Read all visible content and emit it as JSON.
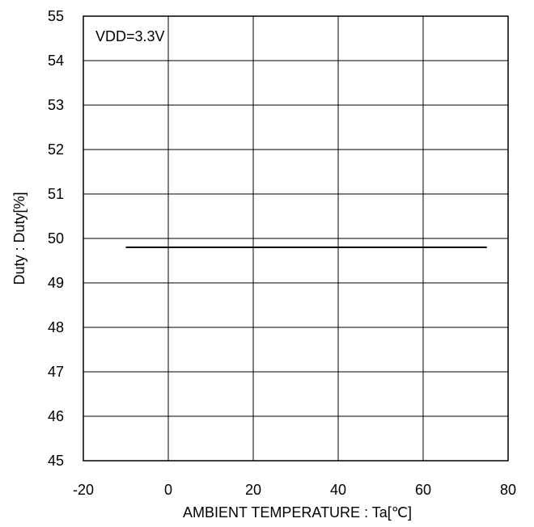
{
  "chart_data": {
    "type": "line",
    "xlabel": "AMBIENT TEMPERATURE : Ta[℃]",
    "ylabel": "Duty : Duty[%]",
    "xlim": [
      -20,
      80
    ],
    "ylim": [
      45,
      55
    ],
    "xticks": [
      -20,
      0,
      20,
      40,
      60,
      80
    ],
    "yticks": [
      45,
      46,
      47,
      48,
      49,
      50,
      51,
      52,
      53,
      54,
      55
    ],
    "grid": true,
    "annotation": "VDD=3.3V",
    "series": [
      {
        "x": [
          -10,
          25,
          75
        ],
        "y": [
          49.8,
          49.8,
          49.8
        ]
      }
    ],
    "colors": {
      "line": "#000000",
      "grid": "#000000"
    }
  }
}
